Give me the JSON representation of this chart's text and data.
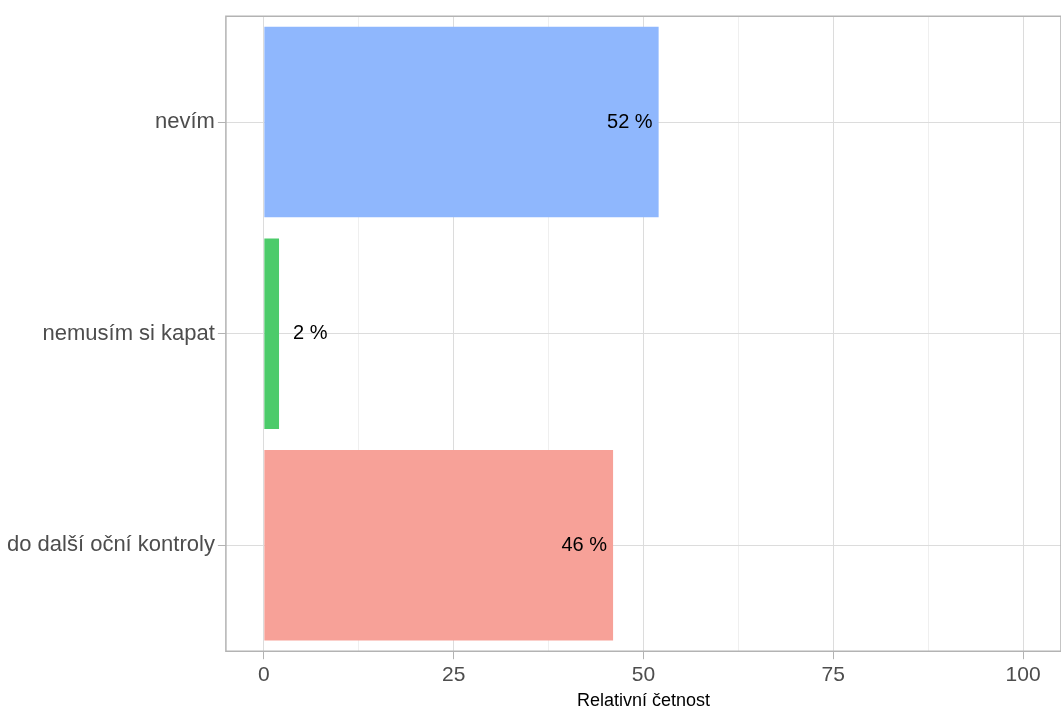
{
  "chart_data": {
    "type": "bar",
    "orientation": "horizontal",
    "categories": [
      "nevím",
      "nemusím si kapat",
      "do další oční kontroly"
    ],
    "values": [
      52,
      2,
      46
    ],
    "colors": [
      "#8fb7fd",
      "#4ccb6a",
      "#f7a198"
    ],
    "value_labels": [
      "52 %",
      "2 %",
      "46 %"
    ],
    "xlabel": "Relativní četnost",
    "xlim": [
      -5,
      105
    ],
    "xticks": [
      0,
      {
        "value": 12.5,
        "label": null
      },
      25,
      {
        "value": 37.5,
        "label": null
      },
      50,
      {
        "value": 62.5,
        "label": null
      },
      75,
      {
        "value": 87.5,
        "label": null
      },
      100
    ],
    "grid": true,
    "legend": false
  }
}
